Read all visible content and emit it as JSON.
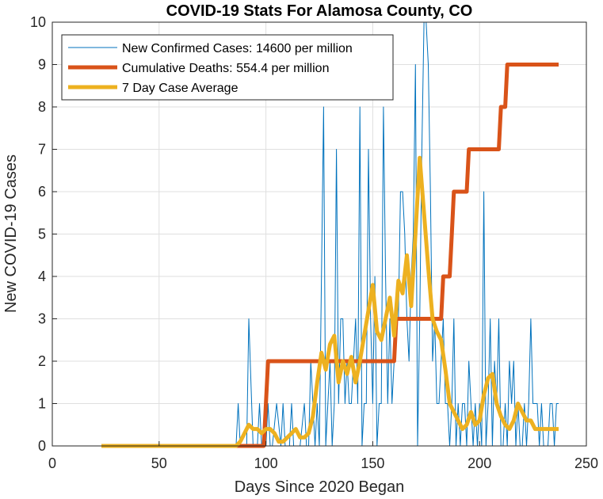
{
  "chart_data": {
    "type": "line",
    "title": "COVID-19 Stats For Alamosa County, CO",
    "xlabel": "Days Since 2020 Began",
    "ylabel": "New COVID-19 Cases",
    "xlim": [
      0,
      250
    ],
    "ylim": [
      0,
      10
    ],
    "xticks": [
      0,
      50,
      100,
      150,
      200,
      250
    ],
    "yticks": [
      0,
      1,
      2,
      3,
      4,
      5,
      6,
      7,
      8,
      9,
      10
    ],
    "grid": true,
    "legend_position": "top-left",
    "series": [
      {
        "name": "New Confirmed Cases: 14600 per million",
        "color": "#0072bd",
        "width": 1,
        "x": [
          23,
          86,
          87,
          88,
          90,
          91,
          92,
          94,
          96,
          97,
          98,
          99,
          100,
          101,
          102,
          103,
          105,
          107,
          108,
          109,
          110,
          111,
          112,
          113,
          114,
          115,
          116,
          118,
          119,
          120,
          121,
          123,
          124,
          125,
          126,
          127,
          128,
          129,
          130,
          131,
          132,
          133,
          134,
          135,
          136,
          137,
          138,
          139,
          140,
          141,
          142,
          143,
          144,
          145,
          146,
          147,
          148,
          149,
          150,
          151,
          152,
          153,
          154,
          155,
          156,
          157,
          158,
          159,
          160,
          161,
          162,
          163,
          164,
          165,
          166,
          167,
          168,
          169,
          170,
          171,
          172,
          173,
          174,
          175,
          176,
          177,
          178,
          179,
          180,
          181,
          182,
          183,
          184,
          185,
          186,
          187,
          188,
          189,
          190,
          191,
          192,
          193,
          194,
          195,
          196,
          197,
          198,
          199,
          200,
          201,
          202,
          203,
          204,
          205,
          206,
          207,
          208,
          209,
          210,
          211,
          212,
          213,
          214,
          215,
          216,
          217,
          218,
          219,
          220,
          221,
          222,
          223,
          224,
          225,
          226,
          227,
          228,
          229,
          230,
          231,
          232,
          233,
          234,
          235,
          236,
          237
        ],
        "y": [
          0,
          0,
          1,
          0,
          0,
          0,
          3,
          0,
          0,
          1,
          0,
          0,
          0,
          1,
          0,
          0,
          1,
          0,
          1,
          0,
          0,
          0,
          1,
          0,
          0,
          0,
          0,
          1,
          0,
          0,
          2,
          0,
          1,
          0,
          4,
          8,
          0,
          1,
          2,
          0,
          1,
          7,
          1,
          3,
          3,
          1,
          2,
          1,
          1,
          2,
          3,
          1,
          8,
          0,
          1,
          1,
          7,
          3,
          1,
          4,
          0,
          1,
          1,
          8,
          4,
          1,
          3,
          1,
          2,
          3,
          3,
          6,
          6,
          5,
          3,
          2,
          4,
          5,
          9,
          0,
          3,
          7,
          10,
          10,
          9,
          6,
          2,
          3,
          1,
          1,
          2,
          3,
          1,
          1,
          0,
          1,
          3,
          0,
          1,
          0,
          1,
          1,
          0,
          2,
          1,
          0,
          1,
          0,
          1,
          0,
          6,
          0,
          1,
          3,
          0,
          2,
          1,
          3,
          0,
          0,
          1,
          0,
          2,
          1,
          2,
          0,
          1,
          0,
          0,
          1,
          0,
          1,
          3,
          1,
          1,
          1,
          0,
          1,
          0,
          0,
          0,
          1,
          1,
          0,
          1,
          1
        ]
      },
      {
        "name": "Cumulative Deaths: 554.4 per million",
        "color": "#d95319",
        "width": 5,
        "x": [
          23,
          99,
          100,
          101,
          159,
          160,
          161,
          181,
          182,
          183,
          186,
          187,
          188,
          193,
          194,
          195,
          209,
          210,
          211,
          212,
          213,
          237
        ],
        "y": [
          0,
          0,
          1,
          2,
          2,
          2,
          3,
          3,
          3,
          4,
          4,
          5,
          6,
          6,
          6,
          7,
          7,
          8,
          8,
          8,
          9,
          9
        ]
      },
      {
        "name": "7 Day Case Average",
        "color": "#edb120",
        "width": 5,
        "x": [
          23,
          86,
          88,
          90,
          92,
          94,
          96,
          98,
          100,
          102,
          104,
          106,
          108,
          110,
          112,
          114,
          116,
          118,
          120,
          122,
          124,
          126,
          128,
          130,
          132,
          134,
          136,
          138,
          140,
          142,
          144,
          146,
          148,
          150,
          152,
          154,
          156,
          158,
          160,
          162,
          164,
          166,
          168,
          170,
          172,
          174,
          176,
          178,
          180,
          182,
          184,
          186,
          188,
          190,
          192,
          194,
          196,
          198,
          200,
          202,
          204,
          206,
          208,
          210,
          212,
          214,
          216,
          218,
          220,
          222,
          224,
          226,
          228,
          230,
          232,
          234,
          236,
          237
        ],
        "y": [
          0,
          0,
          0.1,
          0.3,
          0.5,
          0.4,
          0.4,
          0.3,
          0.4,
          0.4,
          0.3,
          0.1,
          0.1,
          0.2,
          0.3,
          0.4,
          0.2,
          0.2,
          0.3,
          0.7,
          1.5,
          2.2,
          1.8,
          2.4,
          2.6,
          1.5,
          2.0,
          1.7,
          2.1,
          1.5,
          2.0,
          2.6,
          3.2,
          3.8,
          2.7,
          2.5,
          3.0,
          3.5,
          2.6,
          3.9,
          3.6,
          4.5,
          3.3,
          5.0,
          6.8,
          5.5,
          4.2,
          3.0,
          2.7,
          2.5,
          1.8,
          1.0,
          0.8,
          0.6,
          0.4,
          0.5,
          0.8,
          0.5,
          0.6,
          1.2,
          1.6,
          1.7,
          1.0,
          0.7,
          0.5,
          0.4,
          0.6,
          1.0,
          0.8,
          0.6,
          0.6,
          0.4,
          0.4,
          0.4,
          0.4,
          0.4,
          0.4,
          0.4
        ]
      }
    ]
  }
}
